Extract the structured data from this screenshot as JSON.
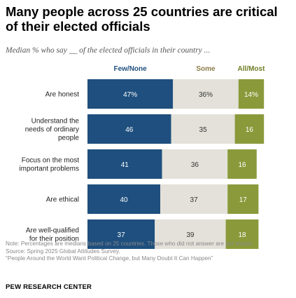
{
  "title": "Many people across 25 countries are critical of their elected officials",
  "subtitle": "Median % who say __ of the elected officials in their country ...",
  "chart_data": {
    "type": "bar",
    "orientation": "horizontal",
    "stacked": true,
    "categories": [
      "Are honest",
      "Understand the needs of ordinary people",
      "Focus on the most important problems",
      "Are ethical",
      "Are well-qualified for their position"
    ],
    "category_lines": [
      [
        "Are honest"
      ],
      [
        "Understand the",
        "needs of ordinary",
        "people"
      ],
      [
        "Focus on the most",
        "important problems"
      ],
      [
        "Are ethical"
      ],
      [
        "Are well-qualified",
        "for their position"
      ]
    ],
    "series": [
      {
        "name": "Few/None",
        "values": [
          47,
          46,
          41,
          40,
          37
        ],
        "labels": [
          "47%",
          "46",
          "41",
          "40",
          "37"
        ],
        "color": "#1e4f7e",
        "text_color": "#ffffff"
      },
      {
        "name": "Some",
        "values": [
          36,
          35,
          36,
          37,
          39
        ],
        "labels": [
          "36%",
          "35",
          "36",
          "37",
          "39"
        ],
        "color": "#e3e1d9",
        "text_color": "#333333"
      },
      {
        "name": "All/Most",
        "values": [
          14,
          16,
          16,
          17,
          18
        ],
        "labels": [
          "14%",
          "16",
          "16",
          "17",
          "18"
        ],
        "color": "#8a9a3b",
        "text_color": "#ffffff"
      }
    ],
    "legend_position": "top",
    "xlim": [
      0,
      100
    ],
    "grid": false
  },
  "notes": [
    "Note: Percentages are medians based on 25 countries. Those who did not answer are not shown.",
    "Source: Spring 2025 Global Attitudes Survey.",
    "“People Around the World Want Political Change, but Many Doubt It Can Happen”"
  ],
  "brand": "PEW RESEARCH CENTER"
}
